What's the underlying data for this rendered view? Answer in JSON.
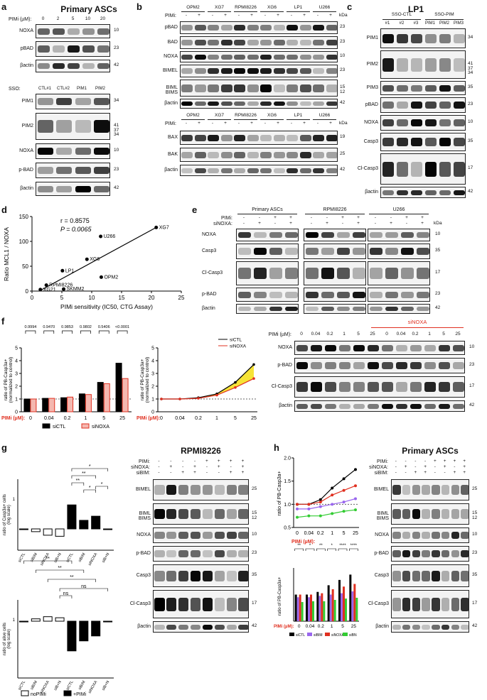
{
  "panels": {
    "a": {
      "letter": "a",
      "title": "Primary ASCs",
      "pimi_label": "PIMi (µM):",
      "doses": [
        "0",
        "2",
        "5",
        "10",
        "20"
      ],
      "blots_top": [
        {
          "label": "NOXA",
          "kda": "10"
        },
        {
          "label": "pBAD",
          "kda": "23"
        },
        {
          "label": "βactin",
          "kda": "42"
        }
      ],
      "sso_label": "SSO:",
      "sso_lanes": [
        "CTL#1",
        "CTL#2",
        "PIM1",
        "PIM2"
      ],
      "blots_bottom": [
        {
          "label": "PIM1",
          "kda": "34"
        },
        {
          "label": "PIM2",
          "kda": "41\n37\n34"
        },
        {
          "label": "NOXA",
          "kda": "10"
        },
        {
          "label": "p-BAD",
          "kda": "23"
        },
        {
          "label": "βactin",
          "kda": "42"
        }
      ]
    },
    "b": {
      "letter": "b",
      "cell_lines": [
        "OPM2",
        "XG7",
        "RPMI8226",
        "XG6",
        "LP1",
        "U266"
      ],
      "pimi_label": "PIMi:",
      "pm": [
        "-",
        "+"
      ],
      "kda_label": "kDa",
      "blots_top": [
        {
          "label": "pBAD",
          "kda": "23"
        },
        {
          "label": "BAD",
          "kda": "23"
        },
        {
          "label": "NOXA",
          "kda": "10"
        },
        {
          "label": "BIMEL",
          "kda": "23"
        },
        {
          "label": "BIML\nBIMS",
          "kda": "15\n12"
        },
        {
          "label": "βactin",
          "kda": "42"
        }
      ],
      "blots_bottom": [
        {
          "label": "BAX",
          "kda": "19"
        },
        {
          "label": "BAK",
          "kda": "25"
        },
        {
          "label": "βactin",
          "kda": "42"
        }
      ]
    },
    "c": {
      "letter": "c",
      "title": "LP1",
      "group1": "SSO-CTL",
      "group2": "SSO-PIM",
      "lanes": [
        "#1",
        "#2",
        "#3",
        "PIM1",
        "PIM2",
        "PIM3"
      ],
      "blots": [
        {
          "label": "PIM1",
          "kda": "34"
        },
        {
          "label": "PIM2",
          "kda": "41\n37\n34"
        },
        {
          "label": "PIM3",
          "kda": "35"
        },
        {
          "label": "pBAD",
          "kda": "23"
        },
        {
          "label": "NOXA",
          "kda": "10"
        },
        {
          "label": "Casp3",
          "kda": "35"
        },
        {
          "label": "Cl-Casp3",
          "kda": "17"
        },
        {
          "label": "βactin",
          "kda": "42"
        }
      ]
    },
    "d": {
      "letter": "d",
      "r_text": "r = 0.8575",
      "p_text": "P = 0.0065",
      "ylabel": "Ratio MCL1 / NOXA",
      "xlabel": "PIMi sensitivity (IC50, CTG Assay)"
    },
    "e": {
      "letter": "e",
      "groups": [
        "Primary ASCs",
        "RPMI8226",
        "U266"
      ],
      "row1_label": "PIMi:",
      "row2_label": "siNOXA:",
      "row1": [
        "-",
        "-",
        "+",
        "+"
      ],
      "row2": [
        "-",
        "+",
        "-",
        "+"
      ],
      "kda_label": "kDa",
      "blots": [
        {
          "label": "NOXA",
          "kda": "10"
        },
        {
          "label": "Casp3",
          "kda": "35"
        },
        {
          "label": "Cl-Casp3",
          "kda": "17"
        },
        {
          "label": "p-BAD",
          "kda": "23"
        },
        {
          "label": "βactin",
          "kda": "42"
        }
      ]
    },
    "f": {
      "letter": "f",
      "pvals": [
        "0.9994",
        "0.9470",
        "0.9853",
        "0.9802",
        "0.5406",
        "<0.0001"
      ],
      "ylabel": "ratio of PB-Casp3a+\n(normalized to control)",
      "xlabel": "PIMi (µM):",
      "legend": [
        "siCTL",
        "siNOXA"
      ],
      "blot_pimi": "PIMi (µM):",
      "blot_doses": [
        "0",
        "0.04",
        "0.2",
        "1",
        "5",
        "25",
        "0",
        "0.04",
        "0.2",
        "1",
        "5",
        "25"
      ],
      "sinoxa": "siNOXA",
      "blots": [
        {
          "label": "NOXA",
          "kda": "10"
        },
        {
          "label": "p-BAD",
          "kda": "23"
        },
        {
          "label": "Cl-Casp3",
          "kda": "17"
        },
        {
          "label": "βactin",
          "kda": "42"
        }
      ]
    },
    "g": {
      "letter": "g",
      "ylabel1": "ratio of Casp3a+ cells\n(log scale)",
      "ylabel2": "ratio of alive cells\n(log scale)",
      "xcats": [
        "siCTL",
        "siBIM",
        "siNOXA",
        "siB+N",
        "siCTL",
        "siBIM",
        "siNOXA",
        "siB+N"
      ],
      "sig": [
        "*",
        "**",
        "**",
        "*",
        "*",
        "ns",
        "**",
        "**",
        "**",
        "ns",
        "ns"
      ],
      "legend": [
        "noPIMi",
        "+PIMi"
      ],
      "title": "RPMI8226",
      "row_labels": [
        "PIMi:",
        "siNOXA:",
        "siBIM:"
      ],
      "rows": [
        [
          "-",
          "-",
          "-",
          "-",
          "+",
          "+",
          "+",
          "+"
        ],
        [
          "-",
          "+",
          "-",
          "+",
          "-",
          "+",
          "-",
          "+"
        ],
        [
          "-",
          "-",
          "+",
          "+",
          "-",
          "-",
          "+",
          "+"
        ]
      ],
      "blots": [
        {
          "label": "BIMEL",
          "kda": "25"
        },
        {
          "label": "BIML\nBIMS",
          "kda": "15\n12"
        },
        {
          "label": "NOXA",
          "kda": "10"
        },
        {
          "label": "p-BAD",
          "kda": "23"
        },
        {
          "label": "Casp3",
          "kda": "35"
        },
        {
          "label": "Cl-Casp3",
          "kda": "17"
        },
        {
          "label": "βactin",
          "kda": "42"
        }
      ]
    },
    "h": {
      "letter": "h",
      "ylabel": "ratio of PB-Casp3a+",
      "ylabel2": "ratio of PB-Casp3a+",
      "xlabel": "PIMi (µM):",
      "doses": [
        "0",
        "0.04",
        "0.2",
        "1",
        "5",
        "25"
      ],
      "legend": [
        "siCTL",
        "siBIM",
        "siNOXA",
        "siBN"
      ],
      "sig_top": [
        "**",
        "*",
        "**",
        "*",
        "****",
        "****"
      ],
      "title": "Primary ASCs",
      "row_labels": [
        "PIMi:",
        "siNOXA:",
        "siBIM:"
      ],
      "blots": [
        {
          "label": "BIMEL",
          "kda": "25"
        },
        {
          "label": "BIML\nBIMS",
          "kda": "15\n12"
        },
        {
          "label": "NOXA",
          "kda": "10"
        },
        {
          "label": "p-BAD",
          "kda": "23"
        },
        {
          "label": "Casp3",
          "kda": "35"
        },
        {
          "label": "Cl-Casp3",
          "kda": "17"
        },
        {
          "label": "βactin",
          "kda": "42"
        }
      ]
    }
  },
  "chart_data": [
    {
      "id": "d",
      "type": "scatter",
      "xlabel": "PIMi sensitivity (IC50, CTG Assay)",
      "ylabel": "Ratio MCL1 / NOXA",
      "xlim": [
        0,
        25
      ],
      "ylim": [
        0,
        150
      ],
      "xticks": [
        0,
        5,
        10,
        15,
        20,
        25
      ],
      "yticks": [
        0,
        50,
        100,
        150
      ],
      "points": [
        {
          "label": "XG7",
          "x": 20.8,
          "y": 128
        },
        {
          "label": "U266",
          "x": 11.5,
          "y": 110
        },
        {
          "label": "XG6",
          "x": 9.2,
          "y": 64
        },
        {
          "label": "LP1",
          "x": 5.1,
          "y": 41
        },
        {
          "label": "OPM2",
          "x": 11.6,
          "y": 28
        },
        {
          "label": "RPMI8226",
          "x": 2.4,
          "y": 12
        },
        {
          "label": "XG21",
          "x": 1.4,
          "y": 3
        },
        {
          "label": "SKMM2",
          "x": 5.3,
          "y": 4
        }
      ],
      "fit": [
        [
          1.2,
          0
        ],
        [
          20.8,
          128
        ]
      ]
    },
    {
      "id": "f-bar",
      "type": "bar",
      "categories": [
        "0",
        "0.04",
        "0.2",
        "1",
        "5",
        "25"
      ],
      "series": [
        {
          "name": "siCTL",
          "values": [
            1.0,
            1.05,
            1.1,
            1.4,
            2.3,
            3.8
          ],
          "color": "#000000"
        },
        {
          "name": "siNOXA",
          "values": [
            1.0,
            1.05,
            1.15,
            1.35,
            2.2,
            2.6
          ],
          "color": "#f4b8b0"
        }
      ],
      "ylim": [
        0,
        5
      ],
      "yticks": [
        0,
        1,
        2,
        3,
        4,
        5
      ]
    },
    {
      "id": "f-line",
      "type": "line",
      "x": [
        "0",
        "0.04",
        "0.2",
        "1",
        "5",
        "25"
      ],
      "series": [
        {
          "name": "siCTL",
          "values": [
            1.0,
            1.0,
            1.1,
            1.4,
            2.3,
            3.7
          ],
          "color": "#000000"
        },
        {
          "name": "siNOXA",
          "values": [
            1.0,
            1.0,
            1.05,
            1.3,
            1.9,
            2.6
          ],
          "color": "#e03020"
        }
      ],
      "ylim": [
        0,
        5
      ],
      "yticks": [
        0,
        1,
        2,
        3,
        4,
        5
      ]
    },
    {
      "id": "h-line",
      "type": "line",
      "x": [
        "0",
        "0.04",
        "0.2",
        "1",
        "5",
        "25"
      ],
      "series": [
        {
          "name": "siCTL",
          "values": [
            1.0,
            1.0,
            1.1,
            1.35,
            1.55,
            1.75
          ],
          "color": "#000000"
        },
        {
          "name": "siBIM",
          "values": [
            0.9,
            0.9,
            0.95,
            1.0,
            1.05,
            1.12
          ],
          "color": "#9966ee"
        },
        {
          "name": "siNOXA",
          "values": [
            1.0,
            1.0,
            1.05,
            1.2,
            1.3,
            1.4
          ],
          "color": "#e03020"
        },
        {
          "name": "siBN",
          "values": [
            0.72,
            0.75,
            0.75,
            0.8,
            0.85,
            0.88
          ],
          "color": "#33cc33"
        }
      ],
      "ylim": [
        0.5,
        2.0
      ],
      "yticks": [
        0.5,
        1.0,
        1.5,
        2.0
      ]
    }
  ]
}
